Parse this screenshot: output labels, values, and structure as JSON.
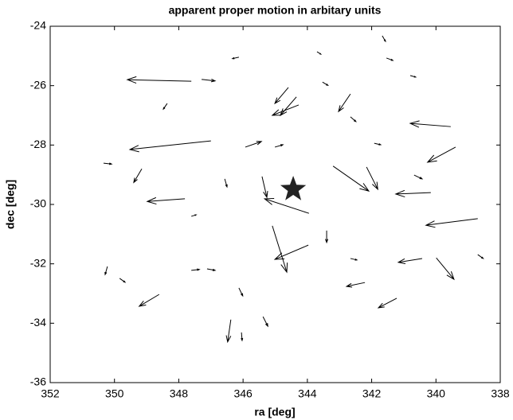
{
  "chart_data": {
    "type": "quiver",
    "title": "apparent proper motion in arbitary units",
    "x_label": "ra [deg]",
    "y_label": "dec [deg]",
    "xlim": [
      352,
      338
    ],
    "ylim": [
      -36,
      -24
    ],
    "xticks": [
      352,
      350,
      348,
      346,
      344,
      342,
      340,
      338
    ],
    "yticks": [
      -36,
      -34,
      -32,
      -30,
      -28,
      -26,
      -24
    ],
    "color": "#000000",
    "x": [
      347.61,
      347.0,
      339.54,
      343.2,
      343.95,
      340.16,
      345.09,
      343.97,
      338.7,
      339.39,
      339.99,
      348.61,
      341.22,
      340.43,
      344.59,
      344.34,
      344.27,
      342.66,
      342.16,
      347.81,
      349.15,
      345.41,
      342.21,
      346.38,
      343.4,
      345.93,
      346.13,
      341.54,
      340.8,
      343.53,
      347.29,
      342.66,
      343.7,
      341.67,
      348.36,
      349.84,
      347.12,
      347.61,
      346.13,
      345.38,
      346.05,
      342.66,
      340.68,
      338.7,
      350.34,
      341.92,
      346.57,
      350.22,
      345.01,
      347.61
    ],
    "y": [
      -25.85,
      -27.86,
      -27.38,
      -28.71,
      -30.3,
      -29.6,
      -30.72,
      -31.37,
      -30.48,
      -28.07,
      -31.8,
      -33.03,
      -33.16,
      -31.82,
      -26.06,
      -26.38,
      -26.65,
      -26.28,
      -28.74,
      -29.81,
      -28.8,
      -29.06,
      -32.63,
      -33.88,
      -30.88,
      -28.07,
      -25.04,
      -25.07,
      -25.66,
      -25.88,
      -25.79,
      -27.05,
      -24.86,
      -24.32,
      -26.6,
      -32.49,
      -32.17,
      -32.22,
      -32.81,
      -33.78,
      -34.31,
      -31.82,
      -29.01,
      -31.69,
      -28.61,
      -27.94,
      -29.14,
      -32.09,
      -28.07,
      -30.4
    ],
    "u": [
      1.99,
      2.52,
      1.26,
      -1.11,
      1.38,
      1.09,
      -0.45,
      1.04,
      1.61,
      0.87,
      -0.55,
      0.62,
      0.57,
      0.74,
      0.42,
      0.5,
      0.82,
      0.37,
      -0.35,
      1.17,
      0.25,
      -0.15,
      0.57,
      0.1,
      0,
      -0.5,
      0.2,
      -0.2,
      -0.17,
      -0.17,
      -0.42,
      -0.17,
      -0.12,
      -0.1,
      0.12,
      -0.17,
      -0.25,
      -0.25,
      -0.12,
      -0.15,
      -0.02,
      -0.2,
      -0.25,
      -0.17,
      -0.25,
      -0.2,
      -0.07,
      0.07,
      -0.25,
      -0.15
    ],
    "v": [
      0.05,
      -0.29,
      0.11,
      -0.84,
      0.49,
      -0.05,
      -1.56,
      -0.48,
      -0.22,
      -0.51,
      -0.72,
      -0.4,
      -0.32,
      -0.13,
      -0.54,
      -0.62,
      -0.35,
      -0.59,
      -0.75,
      -0.09,
      -0.46,
      -0.7,
      -0.13,
      -0.75,
      -0.4,
      0.19,
      -0.05,
      -0.08,
      -0.05,
      -0.11,
      -0.05,
      -0.16,
      -0.08,
      -0.19,
      -0.19,
      -0.13,
      -0.05,
      0.03,
      -0.27,
      -0.32,
      -0.27,
      -0.05,
      -0.13,
      -0.13,
      -0.03,
      -0.05,
      -0.27,
      -0.27,
      0.08,
      0.05
    ],
    "marker": {
      "x": 344.44,
      "y": -29.49,
      "color": "#222222"
    }
  }
}
